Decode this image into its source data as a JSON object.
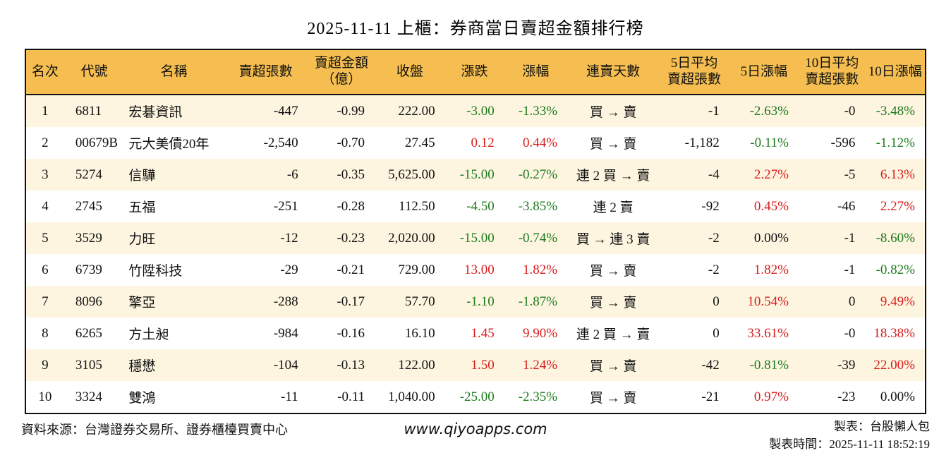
{
  "title": "2025-11-11 上櫃：券商當日賣超金額排行榜",
  "colors": {
    "up": "#d91c1c",
    "down": "#1e7b1e",
    "header_bg": "#f6be50",
    "row_alt": "#fdf5e0",
    "border": "#111111"
  },
  "chart_data": {
    "type": "table",
    "columns": [
      {
        "key": "rank",
        "label": "名次"
      },
      {
        "key": "code",
        "label": "代號"
      },
      {
        "key": "name",
        "label": "名稱"
      },
      {
        "key": "sell_volume",
        "label": "賣超張數"
      },
      {
        "key": "sell_amount",
        "label": "賣超金額\n（億）"
      },
      {
        "key": "close",
        "label": "收盤"
      },
      {
        "key": "change",
        "label": "漲跌"
      },
      {
        "key": "change_pct",
        "label": "漲幅"
      },
      {
        "key": "streak",
        "label": "連賣天數"
      },
      {
        "key": "avg5_volume",
        "label": "5日平均\n賣超張數"
      },
      {
        "key": "pct5",
        "label": "5日漲幅"
      },
      {
        "key": "avg10_volume",
        "label": "10日平均\n賣超張數"
      },
      {
        "key": "pct10",
        "label": "10日漲幅"
      }
    ],
    "colored_columns": [
      "change",
      "change_pct",
      "pct5",
      "pct10"
    ],
    "rows": [
      {
        "rank": "1",
        "code": "6811",
        "name": "宏碁資訊",
        "sell_volume": "-447",
        "sell_amount": "-0.99",
        "close": "222.00",
        "change": "-3.00",
        "change_pct": "-1.33%",
        "streak": "買 → 賣",
        "avg5_volume": "-1",
        "pct5": "-2.63%",
        "avg10_volume": "-0",
        "pct10": "-3.48%"
      },
      {
        "rank": "2",
        "code": "00679B",
        "name": "元大美債20年",
        "sell_volume": "-2,540",
        "sell_amount": "-0.70",
        "close": "27.45",
        "change": "0.12",
        "change_pct": "0.44%",
        "streak": "買 → 賣",
        "avg5_volume": "-1,182",
        "pct5": "-0.11%",
        "avg10_volume": "-596",
        "pct10": "-1.12%"
      },
      {
        "rank": "3",
        "code": "5274",
        "name": "信驊",
        "sell_volume": "-6",
        "sell_amount": "-0.35",
        "close": "5,625.00",
        "change": "-15.00",
        "change_pct": "-0.27%",
        "streak": "連 2 買 → 賣",
        "avg5_volume": "-4",
        "pct5": "2.27%",
        "avg10_volume": "-5",
        "pct10": "6.13%"
      },
      {
        "rank": "4",
        "code": "2745",
        "name": "五福",
        "sell_volume": "-251",
        "sell_amount": "-0.28",
        "close": "112.50",
        "change": "-4.50",
        "change_pct": "-3.85%",
        "streak": "連 2 賣",
        "avg5_volume": "-92",
        "pct5": "0.45%",
        "avg10_volume": "-46",
        "pct10": "2.27%"
      },
      {
        "rank": "5",
        "code": "3529",
        "name": "力旺",
        "sell_volume": "-12",
        "sell_amount": "-0.23",
        "close": "2,020.00",
        "change": "-15.00",
        "change_pct": "-0.74%",
        "streak": "買 → 連 3 賣",
        "avg5_volume": "-2",
        "pct5": "0.00%",
        "avg10_volume": "-1",
        "pct10": "-8.60%"
      },
      {
        "rank": "6",
        "code": "6739",
        "name": "竹陞科技",
        "sell_volume": "-29",
        "sell_amount": "-0.21",
        "close": "729.00",
        "change": "13.00",
        "change_pct": "1.82%",
        "streak": "買 → 賣",
        "avg5_volume": "-2",
        "pct5": "1.82%",
        "avg10_volume": "-1",
        "pct10": "-0.82%"
      },
      {
        "rank": "7",
        "code": "8096",
        "name": "擎亞",
        "sell_volume": "-288",
        "sell_amount": "-0.17",
        "close": "57.70",
        "change": "-1.10",
        "change_pct": "-1.87%",
        "streak": "買 → 賣",
        "avg5_volume": "0",
        "pct5": "10.54%",
        "avg10_volume": "0",
        "pct10": "9.49%"
      },
      {
        "rank": "8",
        "code": "6265",
        "name": "方土昶",
        "sell_volume": "-984",
        "sell_amount": "-0.16",
        "close": "16.10",
        "change": "1.45",
        "change_pct": "9.90%",
        "streak": "連 2 買 → 賣",
        "avg5_volume": "0",
        "pct5": "33.61%",
        "avg10_volume": "-0",
        "pct10": "18.38%"
      },
      {
        "rank": "9",
        "code": "3105",
        "name": "穩懋",
        "sell_volume": "-104",
        "sell_amount": "-0.13",
        "close": "122.00",
        "change": "1.50",
        "change_pct": "1.24%",
        "streak": "買 → 賣",
        "avg5_volume": "-42",
        "pct5": "-0.81%",
        "avg10_volume": "-39",
        "pct10": "22.00%"
      },
      {
        "rank": "10",
        "code": "3324",
        "name": "雙鴻",
        "sell_volume": "-11",
        "sell_amount": "-0.11",
        "close": "1,040.00",
        "change": "-25.00",
        "change_pct": "-2.35%",
        "streak": "買 → 賣",
        "avg5_volume": "-21",
        "pct5": "0.97%",
        "avg10_volume": "-23",
        "pct10": "0.00%"
      }
    ]
  },
  "footer": {
    "source": "資料來源：台灣證券交易所、證券櫃檯買賣中心",
    "website": "www.qiyoapps.com",
    "made_by": "製表：台股懶人包",
    "made_time": "製表時間：2025-11-11 18:52:19"
  }
}
